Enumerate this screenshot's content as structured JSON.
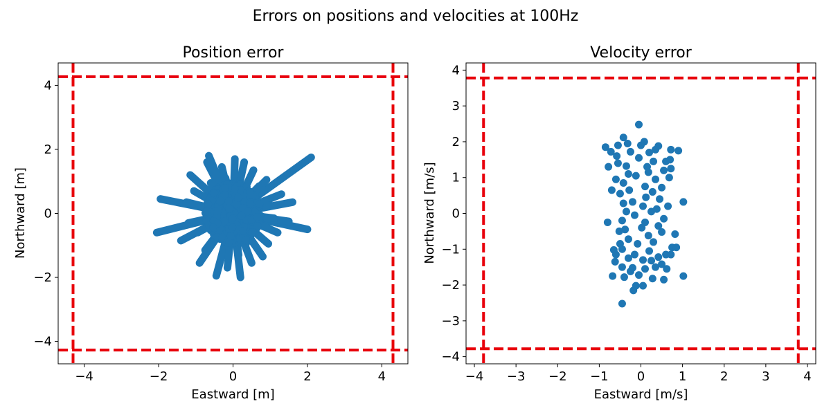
{
  "figure": {
    "suptitle": "Errors on positions and velocities at 100Hz"
  },
  "colors": {
    "points": "#1f77b4",
    "bounds": "#e8000b",
    "axes": "#000000",
    "background": "#ffffff"
  },
  "chart_data": [
    {
      "type": "scatter",
      "title": "Position error",
      "xlabel": "Eastward [m]",
      "ylabel": "Northward [m]",
      "xlim": [
        -4.7,
        4.7
      ],
      "ylim": [
        -4.7,
        4.7
      ],
      "xticks": [
        -4,
        -2,
        0,
        2,
        4
      ],
      "yticks": [
        -4,
        -2,
        0,
        2,
        4
      ],
      "xtick_labels": [
        "−4",
        "−2",
        "0",
        "2",
        "4"
      ],
      "ytick_labels": [
        "−4",
        "−2",
        "0",
        "2",
        "4"
      ],
      "bounds": {
        "x": [
          -4.3,
          4.3
        ],
        "y": [
          -4.27,
          4.27
        ],
        "style": "dashed"
      },
      "trails": [
        {
          "from": [
            0.0,
            0.0
          ],
          "to": [
            2.1,
            1.75
          ]
        },
        {
          "from": [
            0.0,
            0.0
          ],
          "to": [
            -2.05,
            -0.6
          ]
        },
        {
          "from": [
            0.0,
            0.0
          ],
          "to": [
            -1.95,
            0.45
          ]
        },
        {
          "from": [
            0.0,
            0.0
          ],
          "to": [
            2.0,
            -0.5
          ]
        },
        {
          "from": [
            0.0,
            0.0
          ],
          "to": [
            0.9,
            1.05
          ]
        },
        {
          "from": [
            0.0,
            0.0
          ],
          "to": [
            -1.4,
            -0.85
          ]
        },
        {
          "from": [
            0.0,
            0.0
          ],
          "to": [
            1.6,
            0.35
          ]
        },
        {
          "from": [
            0.0,
            0.0
          ],
          "to": [
            1.5,
            -0.25
          ]
        },
        {
          "from": [
            0.0,
            0.0
          ],
          "to": [
            -1.15,
            1.2
          ]
        },
        {
          "from": [
            0.0,
            0.0
          ],
          "to": [
            -0.7,
            1.6
          ]
        },
        {
          "from": [
            0.0,
            0.0
          ],
          "to": [
            -0.65,
            1.8
          ]
        },
        {
          "from": [
            0.0,
            0.0
          ],
          "to": [
            0.05,
            1.7
          ]
        },
        {
          "from": [
            0.0,
            0.0
          ],
          "to": [
            0.3,
            1.6
          ]
        },
        {
          "from": [
            0.0,
            0.0
          ],
          "to": [
            -0.45,
            -1.95
          ]
        },
        {
          "from": [
            0.0,
            0.0
          ],
          "to": [
            0.2,
            -2.0
          ]
        },
        {
          "from": [
            0.0,
            0.0
          ],
          "to": [
            -0.9,
            -1.55
          ]
        },
        {
          "from": [
            0.0,
            0.0
          ],
          "to": [
            0.8,
            -1.35
          ]
        },
        {
          "from": [
            0.0,
            0.0
          ],
          "to": [
            -1.2,
            -0.3
          ]
        },
        {
          "from": [
            0.0,
            0.0
          ],
          "to": [
            1.2,
            -0.6
          ]
        },
        {
          "from": [
            0.0,
            0.0
          ],
          "to": [
            1.3,
            0.6
          ]
        },
        {
          "from": [
            0.0,
            0.0
          ],
          "to": [
            -1.05,
            0.7
          ]
        },
        {
          "from": [
            0.0,
            0.0
          ],
          "to": [
            -0.3,
            1.45
          ]
        },
        {
          "from": [
            0.0,
            0.0
          ],
          "to": [
            0.55,
            1.35
          ]
        },
        {
          "from": [
            0.0,
            0.0
          ],
          "to": [
            0.5,
            -1.55
          ]
        },
        {
          "from": [
            0.0,
            0.0
          ],
          "to": [
            -0.15,
            -1.7
          ]
        },
        {
          "from": [
            0.0,
            0.0
          ],
          "to": [
            0.95,
            -0.95
          ]
        },
        {
          "from": [
            0.0,
            0.0
          ],
          "to": [
            -0.75,
            -1.15
          ]
        },
        {
          "from": [
            0.0,
            0.0
          ],
          "to": [
            -1.25,
            0.35
          ]
        },
        {
          "from": [
            0.0,
            0.0
          ],
          "to": [
            1.0,
            0.25
          ]
        },
        {
          "from": [
            0.0,
            0.0
          ],
          "to": [
            0.15,
            -1.3
          ]
        },
        {
          "from": [
            0.0,
            0.0
          ],
          "to": [
            -0.2,
            1.1
          ]
        },
        {
          "from": [
            0.0,
            0.0
          ],
          "to": [
            0.7,
            0.85
          ]
        },
        {
          "from": [
            0.0,
            0.0
          ],
          "to": [
            -0.6,
            0.95
          ]
        },
        {
          "from": [
            0.0,
            0.0
          ],
          "to": [
            0.35,
            -0.95
          ]
        },
        {
          "from": [
            0.0,
            0.0
          ],
          "to": [
            -0.95,
            -0.6
          ]
        },
        {
          "from": [
            0.0,
            0.0
          ],
          "to": [
            1.1,
            -0.15
          ]
        }
      ],
      "core_radius": [
        0.75,
        0.95
      ]
    },
    {
      "type": "scatter",
      "title": "Velocity error",
      "xlabel": "Eastward [m/s]",
      "ylabel": "Northward [m/s]",
      "xlim": [
        -4.2,
        4.2
      ],
      "ylim": [
        -4.2,
        4.2
      ],
      "xticks": [
        -4,
        -3,
        -2,
        -1,
        0,
        1,
        2,
        3,
        4
      ],
      "yticks": [
        -4,
        -3,
        -2,
        -1,
        0,
        1,
        2,
        3,
        4
      ],
      "xtick_labels": [
        "−4",
        "−3",
        "−2",
        "−1",
        "0",
        "1",
        "2",
        "3",
        "4"
      ],
      "ytick_labels": [
        "−4",
        "−3",
        "−2",
        "−1",
        "0",
        "1",
        "2",
        "3",
        "4"
      ],
      "bounds": {
        "x": [
          -3.78,
          3.78
        ],
        "y": [
          -3.78,
          3.78
        ],
        "style": "dashed"
      },
      "points": [
        [
          -0.05,
          2.48
        ],
        [
          -0.42,
          2.12
        ],
        [
          -0.85,
          1.85
        ],
        [
          -0.72,
          1.72
        ],
        [
          -0.32,
          1.95
        ],
        [
          0.08,
          2.0
        ],
        [
          0.72,
          1.78
        ],
        [
          0.42,
          1.88
        ],
        [
          -0.58,
          1.6
        ],
        [
          -0.78,
          1.3
        ],
        [
          -0.25,
          1.72
        ],
        [
          0.2,
          1.7
        ],
        [
          0.6,
          1.45
        ],
        [
          0.7,
          1.5
        ],
        [
          -0.05,
          1.55
        ],
        [
          -0.55,
          1.4
        ],
        [
          0.3,
          1.45
        ],
        [
          0.55,
          1.2
        ],
        [
          -0.35,
          1.32
        ],
        [
          0.15,
          1.3
        ],
        [
          -0.6,
          0.95
        ],
        [
          0.68,
          1.0
        ],
        [
          -0.12,
          1.05
        ],
        [
          0.35,
          0.95
        ],
        [
          -0.42,
          0.85
        ],
        [
          0.5,
          0.72
        ],
        [
          -0.28,
          0.65
        ],
        [
          0.1,
          0.75
        ],
        [
          -0.5,
          0.55
        ],
        [
          0.28,
          0.6
        ],
        [
          -0.2,
          0.32
        ],
        [
          0.45,
          0.4
        ],
        [
          1.02,
          0.32
        ],
        [
          -0.42,
          0.28
        ],
        [
          0.05,
          0.2
        ],
        [
          -0.35,
          0.05
        ],
        [
          0.25,
          0.05
        ],
        [
          -0.15,
          -0.05
        ],
        [
          0.55,
          -0.15
        ],
        [
          -0.45,
          -0.2
        ],
        [
          0.1,
          -0.25
        ],
        [
          0.42,
          -0.35
        ],
        [
          0.02,
          -0.4
        ],
        [
          -0.38,
          -0.45
        ],
        [
          0.5,
          -0.52
        ],
        [
          0.82,
          -0.58
        ],
        [
          -0.3,
          -0.72
        ],
        [
          0.18,
          -0.62
        ],
        [
          -0.5,
          -0.85
        ],
        [
          0.3,
          -0.8
        ],
        [
          -0.65,
          -1.02
        ],
        [
          -0.45,
          -1.0
        ],
        [
          0.75,
          -0.95
        ],
        [
          0.2,
          -1.05
        ],
        [
          -0.15,
          -1.15
        ],
        [
          0.6,
          -1.15
        ],
        [
          -0.6,
          -1.15
        ],
        [
          0.42,
          -1.22
        ],
        [
          -0.3,
          -1.25
        ],
        [
          0.05,
          -1.3
        ],
        [
          -0.62,
          -1.35
        ],
        [
          0.25,
          -1.32
        ],
        [
          -0.45,
          -1.5
        ],
        [
          0.5,
          -1.42
        ],
        [
          -0.2,
          -1.52
        ],
        [
          0.1,
          -1.55
        ],
        [
          -0.68,
          -1.75
        ],
        [
          -0.4,
          -1.78
        ],
        [
          1.02,
          -1.75
        ],
        [
          0.28,
          -1.82
        ],
        [
          0.55,
          -1.85
        ],
        [
          -0.05,
          -1.72
        ],
        [
          -0.12,
          -2.02
        ],
        [
          0.05,
          -2.02
        ],
        [
          -0.18,
          -2.15
        ],
        [
          -0.45,
          -2.52
        ],
        [
          0.72,
          -1.15
        ],
        [
          0.85,
          -0.95
        ],
        [
          -0.8,
          -0.25
        ],
        [
          0.65,
          0.2
        ],
        [
          -0.3,
          1.1
        ],
        [
          0.12,
          0.45
        ],
        [
          -0.08,
          -0.85
        ],
        [
          0.35,
          1.78
        ],
        [
          -0.55,
          1.9
        ],
        [
          0.62,
          -1.55
        ],
        [
          -0.52,
          -0.5
        ],
        [
          0.38,
          0.12
        ],
        [
          0.9,
          1.75
        ],
        [
          -0.7,
          0.65
        ],
        [
          0.0,
          1.9
        ],
        [
          0.18,
          1.15
        ],
        [
          -0.25,
          -1.62
        ],
        [
          0.35,
          -1.5
        ],
        [
          0.72,
          1.25
        ]
      ]
    }
  ]
}
